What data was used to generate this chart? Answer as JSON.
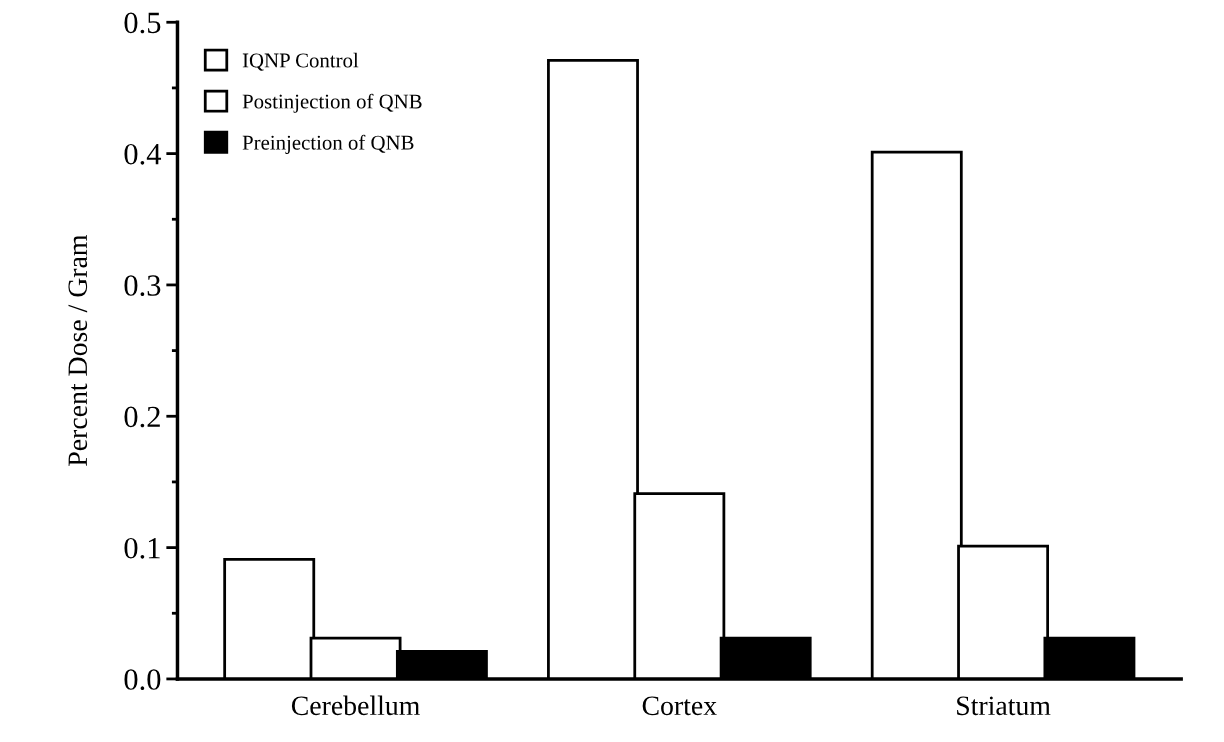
{
  "chart_data": {
    "type": "bar",
    "ylabel": "Percent Dose / Gram",
    "categories": [
      "Cerebellum",
      "Cortex",
      "Striatum"
    ],
    "series": [
      {
        "name": "IQNP Control",
        "color": "#ffffff",
        "values": [
          0.09,
          0.47,
          0.4
        ]
      },
      {
        "name": "Postinjection of QNB",
        "color": "#ffffff",
        "values": [
          0.03,
          0.14,
          0.1
        ]
      },
      {
        "name": "Preinjection of QNB",
        "color": "#000000",
        "values": [
          0.02,
          0.03,
          0.03
        ]
      }
    ],
    "ylim": [
      0,
      0.5
    ],
    "yticks": [
      {
        "value": 0,
        "label": "0.0"
      },
      {
        "value": 0.1,
        "label": "0.1"
      },
      {
        "value": 0.2,
        "label": "0.2"
      },
      {
        "value": 0.3,
        "label": "0.3"
      },
      {
        "value": 0.4,
        "label": "0.4"
      },
      {
        "value": 0.5,
        "label": "0.5"
      }
    ],
    "grid": false,
    "legend": "top left"
  }
}
